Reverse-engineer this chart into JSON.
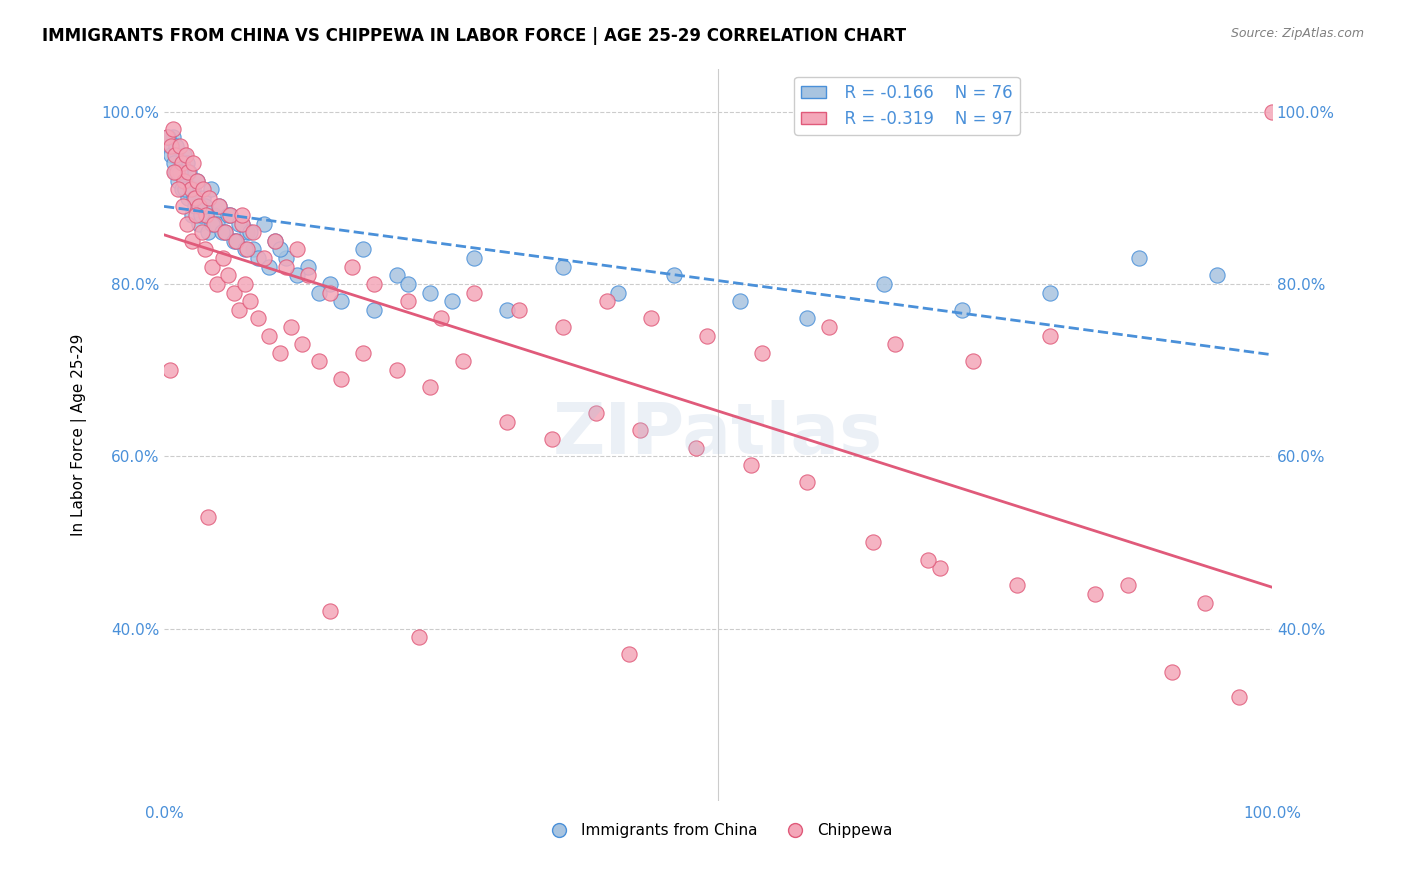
{
  "title": "IMMIGRANTS FROM CHINA VS CHIPPEWA IN LABOR FORCE | AGE 25-29 CORRELATION CHART",
  "source": "Source: ZipAtlas.com",
  "xlabel": "",
  "ylabel": "In Labor Force | Age 25-29",
  "xlim": [
    0.0,
    1.0
  ],
  "ylim": [
    0.2,
    1.05
  ],
  "x_ticks": [
    0.0,
    0.2,
    0.4,
    0.6,
    0.8,
    1.0
  ],
  "x_tick_labels": [
    "0.0%",
    "",
    "",
    "",
    "",
    "100.0%"
  ],
  "y_tick_labels": [
    "100.0%",
    "80.0%",
    "60.0%",
    "40.0%"
  ],
  "y_ticks": [
    1.0,
    0.8,
    0.6,
    0.4
  ],
  "legend_labels": [
    "Immigrants from China",
    "Chippewa"
  ],
  "legend_R": [
    "R = -0.166",
    "R = -0.319"
  ],
  "legend_N": [
    "N = 76",
    "N = 97"
  ],
  "color_china": "#a8c4e0",
  "color_chippewa": "#f4a7b9",
  "trendline_china_color": "#4a90d9",
  "trendline_chippewa_color": "#e05a7a",
  "watermark": "ZIPatlas",
  "china_x": [
    0.005,
    0.008,
    0.01,
    0.012,
    0.013,
    0.015,
    0.016,
    0.017,
    0.018,
    0.02,
    0.021,
    0.022,
    0.023,
    0.025,
    0.026,
    0.028,
    0.03,
    0.032,
    0.035,
    0.038,
    0.04,
    0.042,
    0.045,
    0.048,
    0.05,
    0.055,
    0.06,
    0.065,
    0.07,
    0.075,
    0.08,
    0.09,
    0.1,
    0.11,
    0.13,
    0.15,
    0.18,
    0.21,
    0.24,
    0.28,
    0.0035,
    0.006,
    0.009,
    0.011,
    0.014,
    0.019,
    0.027,
    0.033,
    0.037,
    0.043,
    0.052,
    0.058,
    0.063,
    0.068,
    0.073,
    0.078,
    0.085,
    0.095,
    0.105,
    0.12,
    0.14,
    0.16,
    0.19,
    0.22,
    0.26,
    0.31,
    0.36,
    0.41,
    0.46,
    0.52,
    0.58,
    0.65,
    0.72,
    0.8,
    0.88,
    0.95
  ],
  "china_y": [
    0.96,
    0.97,
    0.93,
    0.95,
    0.92,
    0.94,
    0.91,
    0.93,
    0.95,
    0.92,
    0.94,
    0.9,
    0.93,
    0.88,
    0.91,
    0.89,
    0.92,
    0.87,
    0.9,
    0.88,
    0.86,
    0.91,
    0.88,
    0.87,
    0.89,
    0.86,
    0.88,
    0.85,
    0.87,
    0.86,
    0.84,
    0.87,
    0.85,
    0.83,
    0.82,
    0.8,
    0.84,
    0.81,
    0.79,
    0.83,
    0.97,
    0.95,
    0.94,
    0.96,
    0.93,
    0.91,
    0.9,
    0.88,
    0.89,
    0.87,
    0.86,
    0.88,
    0.85,
    0.87,
    0.84,
    0.86,
    0.83,
    0.82,
    0.84,
    0.81,
    0.79,
    0.78,
    0.77,
    0.8,
    0.78,
    0.77,
    0.82,
    0.79,
    0.81,
    0.78,
    0.76,
    0.8,
    0.77,
    0.79,
    0.83,
    0.81
  ],
  "chippewa_x": [
    0.003,
    0.006,
    0.008,
    0.01,
    0.012,
    0.014,
    0.016,
    0.018,
    0.02,
    0.022,
    0.024,
    0.026,
    0.028,
    0.03,
    0.032,
    0.035,
    0.038,
    0.041,
    0.045,
    0.05,
    0.055,
    0.06,
    0.065,
    0.07,
    0.075,
    0.08,
    0.09,
    0.1,
    0.11,
    0.12,
    0.13,
    0.15,
    0.17,
    0.19,
    0.22,
    0.25,
    0.28,
    0.32,
    0.36,
    0.4,
    0.44,
    0.49,
    0.54,
    0.6,
    0.66,
    0.73,
    0.8,
    0.87,
    0.94,
    1.0,
    0.005,
    0.009,
    0.013,
    0.017,
    0.021,
    0.025,
    0.029,
    0.034,
    0.037,
    0.043,
    0.048,
    0.053,
    0.058,
    0.063,
    0.068,
    0.073,
    0.078,
    0.085,
    0.095,
    0.105,
    0.115,
    0.125,
    0.14,
    0.16,
    0.18,
    0.21,
    0.24,
    0.27,
    0.31,
    0.35,
    0.39,
    0.43,
    0.48,
    0.53,
    0.58,
    0.64,
    0.7,
    0.77,
    0.84,
    0.91,
    0.97,
    0.04,
    0.07,
    0.15,
    0.23,
    0.42,
    0.69
  ],
  "chippewa_y": [
    0.97,
    0.96,
    0.98,
    0.95,
    0.93,
    0.96,
    0.94,
    0.92,
    0.95,
    0.93,
    0.91,
    0.94,
    0.9,
    0.92,
    0.89,
    0.91,
    0.88,
    0.9,
    0.87,
    0.89,
    0.86,
    0.88,
    0.85,
    0.87,
    0.84,
    0.86,
    0.83,
    0.85,
    0.82,
    0.84,
    0.81,
    0.79,
    0.82,
    0.8,
    0.78,
    0.76,
    0.79,
    0.77,
    0.75,
    0.78,
    0.76,
    0.74,
    0.72,
    0.75,
    0.73,
    0.71,
    0.74,
    0.45,
    0.43,
    1.0,
    0.7,
    0.93,
    0.91,
    0.89,
    0.87,
    0.85,
    0.88,
    0.86,
    0.84,
    0.82,
    0.8,
    0.83,
    0.81,
    0.79,
    0.77,
    0.8,
    0.78,
    0.76,
    0.74,
    0.72,
    0.75,
    0.73,
    0.71,
    0.69,
    0.72,
    0.7,
    0.68,
    0.71,
    0.64,
    0.62,
    0.65,
    0.63,
    0.61,
    0.59,
    0.57,
    0.5,
    0.47,
    0.45,
    0.44,
    0.35,
    0.32,
    0.53,
    0.88,
    0.42,
    0.39,
    0.37,
    0.48
  ]
}
